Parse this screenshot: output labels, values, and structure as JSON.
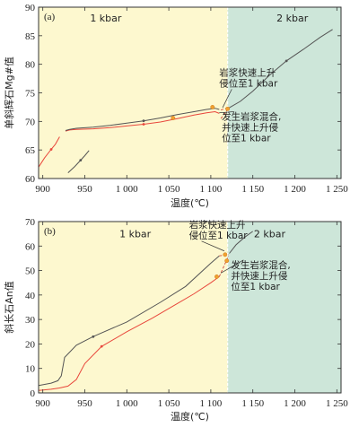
{
  "colors": {
    "yellow_region": "#fdf8cf",
    "green_region": "#cde6d9",
    "red_line": "#e8473c",
    "black_line": "#555555",
    "dash": "#ffffff",
    "dot_orange": "#f0a030"
  },
  "chart_data": [
    {
      "type": "line",
      "panel_label": "(a)",
      "xlabel": "温度(℃)",
      "ylabel": "单斜辉石Mg#值",
      "xlim": [
        895,
        1255
      ],
      "ylim": [
        60,
        90
      ],
      "xticks": [
        900,
        950,
        1000,
        1050,
        1100,
        1150,
        1200,
        1250
      ],
      "xtick_labels": [
        "900",
        "950",
        "1 000",
        "1 050",
        "1 100",
        "1 150",
        "1 200",
        "1 250"
      ],
      "yticks": [
        60,
        65,
        70,
        75,
        80,
        85,
        90
      ],
      "ytick_labels": [
        "60",
        "65",
        "70",
        "75",
        "80",
        "85",
        "90"
      ],
      "regions": [
        {
          "label": "1 kbar",
          "x_from": 895,
          "x_to": 1120,
          "label_x": 975,
          "label_y": 87.5
        },
        {
          "label": "2 kbar",
          "x_from": 1120,
          "x_to": 1255,
          "label_x": 1197,
          "label_y": 87.5
        }
      ],
      "boundary_x": 1120,
      "annotations": [
        {
          "text": [
            "岩浆快速上升",
            "侵位至1 kbar"
          ],
          "x": 1110,
          "y": 78.0,
          "ax": 1114,
          "ay": 72.4
        },
        {
          "text": [
            "发生岩浆混合,",
            "并快速上升侵",
            "位至1 kbar"
          ],
          "x": 1113,
          "y": 70.3,
          "ax": 1110,
          "ay": 71.5
        }
      ],
      "series": [
        {
          "color_key": "red_line",
          "x": [
            895,
            902,
            910,
            915,
            920
          ],
          "y": [
            62.0,
            63.6,
            65.1,
            66.0,
            67.3
          ]
        },
        {
          "color_key": "black_line",
          "x": [
            930,
            938,
            945,
            950,
            955
          ],
          "y": [
            61.0,
            62.1,
            63.2,
            64.0,
            64.9
          ]
        },
        {
          "color_key": "red_line",
          "x": [
            927,
            932,
            940,
            960,
            980,
            1000,
            1020,
            1040,
            1060,
            1080,
            1095,
            1105,
            1110
          ],
          "y": [
            68.3,
            68.5,
            68.6,
            68.7,
            68.9,
            69.2,
            69.5,
            69.9,
            70.5,
            71.1,
            71.5,
            71.7,
            71.4
          ]
        },
        {
          "color_key": "black_line",
          "x": [
            927,
            932,
            940,
            960,
            980,
            1000,
            1020,
            1040,
            1060,
            1080,
            1095,
            1105,
            1110
          ],
          "y": [
            68.4,
            68.6,
            68.8,
            69.0,
            69.3,
            69.7,
            70.1,
            70.6,
            71.2,
            71.7,
            72.1,
            72.3,
            72.1
          ]
        },
        {
          "color_key": "black_line",
          "x": [
            1122,
            1135,
            1150,
            1170,
            1190,
            1210,
            1230,
            1245
          ],
          "y": [
            72.4,
            73.5,
            75.3,
            78.1,
            80.6,
            82.6,
            84.7,
            86.1
          ]
        }
      ],
      "dashed": [
        {
          "x": [
            1112,
            1121
          ],
          "y": [
            72.0,
            72.4
          ]
        },
        {
          "x": [
            1112,
            1121
          ],
          "y": [
            70.5,
            72.3
          ]
        }
      ],
      "dots": [
        {
          "x": 1055,
          "y": 70.6
        },
        {
          "x": 1102,
          "y": 72.5
        },
        {
          "x": 1120,
          "y": 72.2
        }
      ]
    },
    {
      "type": "line",
      "panel_label": "(b)",
      "xlabel": "温度(℃)",
      "ylabel": "斜长石An值",
      "xlim": [
        895,
        1255
      ],
      "ylim": [
        0,
        70
      ],
      "xticks": [
        900,
        950,
        1000,
        1050,
        1100,
        1150,
        1200,
        1250
      ],
      "xtick_labels": [
        "900",
        "950",
        "1 000",
        "1 050",
        "1 100",
        "1 150",
        "1 200",
        "1 250"
      ],
      "yticks": [
        0,
        10,
        20,
        30,
        40,
        50,
        60,
        70
      ],
      "ytick_labels": [
        "0",
        "10",
        "20",
        "30",
        "40",
        "50",
        "60",
        "70"
      ],
      "regions": [
        {
          "label": "1 kbar",
          "x_from": 895,
          "x_to": 1120,
          "label_x": 1010,
          "label_y": 63.5
        },
        {
          "label": "2 kbar",
          "x_from": 1120,
          "x_to": 1255,
          "label_x": 1170,
          "label_y": 63.5
        }
      ],
      "boundary_x": 1120,
      "annotations": [
        {
          "text": [
            "岩浆快速上升",
            "侵位至1 kbar"
          ],
          "x": 1074,
          "y": 67.5,
          "ax": 1116,
          "ay": 58.0
        },
        {
          "text": [
            "发生岩浆混合,",
            "并快速上升侵",
            "位至1 kbar"
          ],
          "x": 1124,
          "y": 51.0,
          "ax": 1112,
          "ay": 49.0
        }
      ],
      "series": [
        {
          "color_key": "red_line",
          "x": [
            895,
            910,
            920,
            930,
            940,
            950,
            970,
            1000,
            1030,
            1060,
            1080,
            1100,
            1110
          ],
          "y": [
            1.0,
            1.5,
            2.0,
            2.8,
            5.5,
            12.0,
            19.0,
            25.0,
            30.5,
            36.5,
            40.5,
            45.0,
            47.5
          ]
        },
        {
          "color_key": "black_line",
          "x": [
            895,
            910,
            918,
            922,
            926,
            940,
            960,
            1000,
            1040,
            1070,
            1100,
            1110
          ],
          "y": [
            3.0,
            4.0,
            5.0,
            7.0,
            14.5,
            19.5,
            23.0,
            29.0,
            37.0,
            43.5,
            53.0,
            56.0
          ]
        },
        {
          "color_key": "black_line",
          "x": [
            1122,
            1130,
            1140,
            1150
          ],
          "y": [
            57.0,
            60.5,
            63.5,
            66.0
          ]
        }
      ],
      "dashed": [
        {
          "x": [
            1110,
            1121
          ],
          "y": [
            56.0,
            56.5
          ]
        },
        {
          "x": [
            1110,
            1121
          ],
          "y": [
            47.5,
            56.0
          ]
        }
      ],
      "dots": [
        {
          "x": 1107,
          "y": 47.5
        },
        {
          "x": 1117,
          "y": 56.5
        },
        {
          "x": 1119,
          "y": 54.0
        }
      ]
    }
  ]
}
